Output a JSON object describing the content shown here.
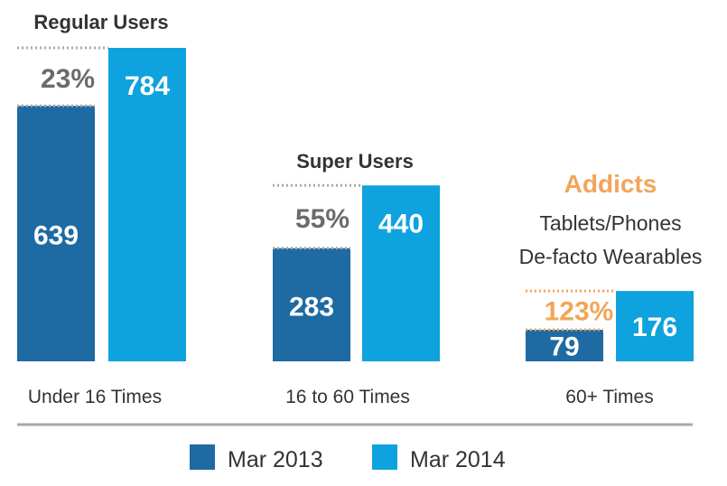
{
  "chart_data": {
    "type": "bar",
    "categories": [
      "Under 16 Times",
      "16 to 60 Times",
      "60+ Times"
    ],
    "group_titles": [
      "Regular Users",
      "Super Users",
      "Addicts"
    ],
    "group_subtitle_lines": [
      "Tablets/Phones",
      "De-facto Wearables"
    ],
    "series": [
      {
        "name": "Mar 2013",
        "values": [
          639,
          283,
          79
        ]
      },
      {
        "name": "Mar 2014",
        "values": [
          784,
          440,
          176
        ]
      }
    ],
    "value_labels": [
      [
        "639",
        "283",
        "79"
      ],
      [
        "784",
        "440",
        "176"
      ]
    ],
    "growth_labels": [
      "23%",
      "55%",
      "123%"
    ],
    "legend_position": "bottom",
    "grid": false,
    "colors": {
      "mar_2013": "#1e6aa3",
      "mar_2014": "#0ea2de",
      "highlight": "#f2a55a",
      "text": "#333333",
      "growth_text": "#6b6b6b",
      "axis": "#a9a9a9"
    }
  }
}
